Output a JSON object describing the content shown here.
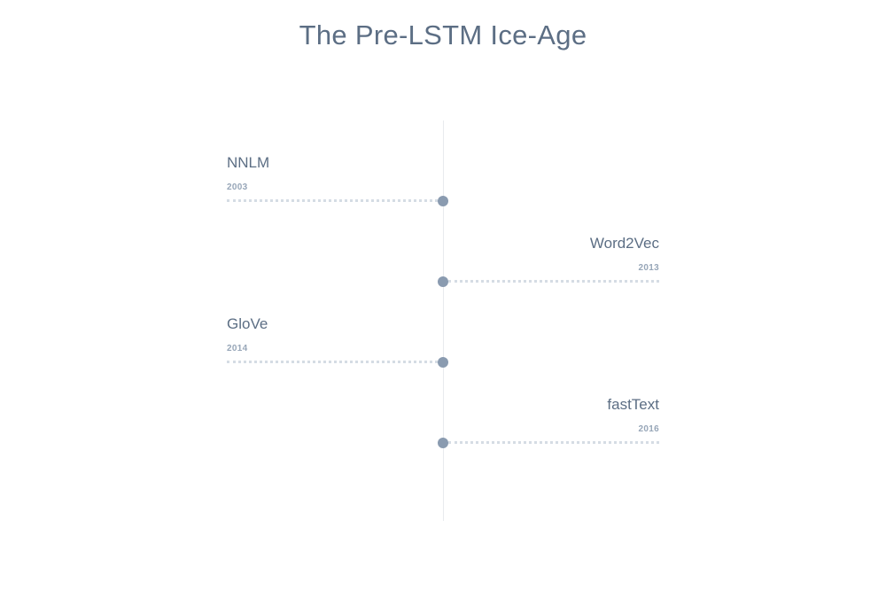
{
  "title": "The Pre-LSTM Ice-Age",
  "events": [
    {
      "name": "NNLM",
      "year": "2003",
      "side": "left"
    },
    {
      "name": "Word2Vec",
      "year": "2013",
      "side": "right"
    },
    {
      "name": "GloVe",
      "year": "2014",
      "side": "left"
    },
    {
      "name": "fastText",
      "year": "2016",
      "side": "right"
    }
  ]
}
